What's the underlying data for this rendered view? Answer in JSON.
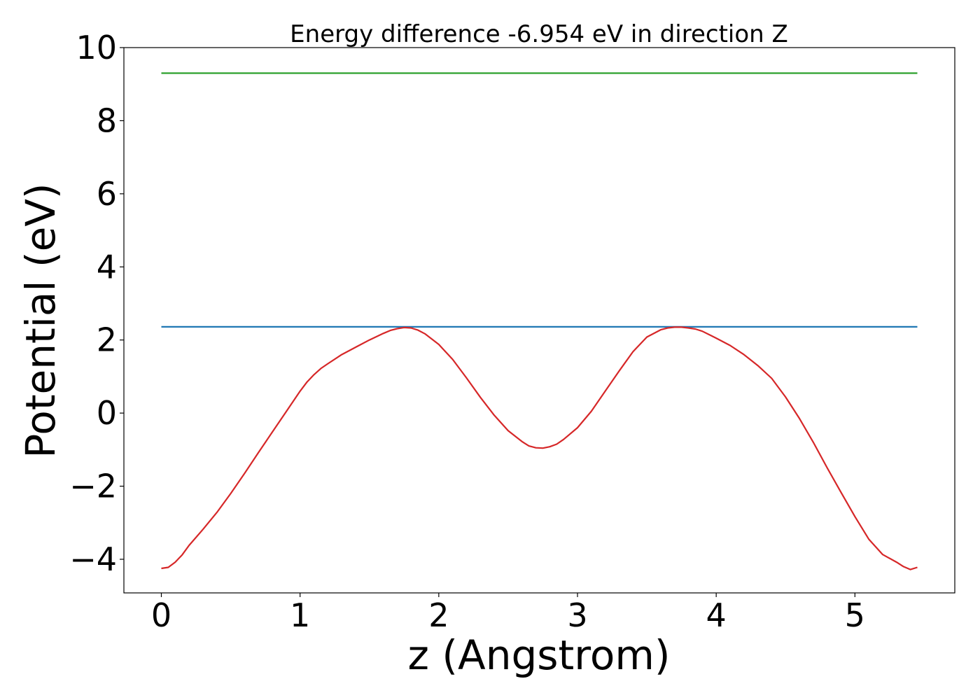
{
  "chart_data": {
    "type": "line",
    "title": "Energy difference -6.954 eV in direction Z",
    "xlabel": "z (Angstrom)",
    "ylabel": "Potential (eV)",
    "xlim": [
      -0.27,
      5.72
    ],
    "ylim": [
      -4.92,
      10.0
    ],
    "x_ticks": [
      0,
      1,
      2,
      3,
      4,
      5
    ],
    "x_tick_labels": [
      "0",
      "1",
      "2",
      "3",
      "4",
      "5"
    ],
    "y_ticks": [
      -4,
      -2,
      0,
      2,
      4,
      6,
      8,
      10
    ],
    "y_tick_labels": [
      "−4",
      "−2",
      "0",
      "2",
      "4",
      "6",
      "8",
      "10"
    ],
    "grid": false,
    "series": [
      {
        "color": "#2ca02c",
        "x": [
          0,
          5.45
        ],
        "y": [
          9.3,
          9.3
        ]
      },
      {
        "color": "#1f77b4",
        "x": [
          0,
          5.45
        ],
        "y": [
          2.36,
          2.36
        ]
      },
      {
        "color": "#d62728",
        "x": [
          0,
          0.05,
          0.1,
          0.15,
          0.2,
          0.3,
          0.4,
          0.5,
          0.6,
          0.7,
          0.8,
          0.9,
          1.0,
          1.05,
          1.1,
          1.15,
          1.2,
          1.3,
          1.4,
          1.5,
          1.6,
          1.65,
          1.7,
          1.75,
          1.8,
          1.85,
          1.9,
          2.0,
          2.1,
          2.2,
          2.3,
          2.4,
          2.5,
          2.6,
          2.65,
          2.7,
          2.75,
          2.8,
          2.85,
          2.9,
          3.0,
          3.1,
          3.2,
          3.3,
          3.4,
          3.5,
          3.6,
          3.65,
          3.7,
          3.75,
          3.8,
          3.85,
          3.9,
          4.0,
          4.1,
          4.2,
          4.3,
          4.4,
          4.5,
          4.6,
          4.7,
          4.8,
          4.9,
          5.0,
          5.1,
          5.2,
          5.3,
          5.35,
          5.4,
          5.45
        ],
        "y": [
          -4.25,
          -4.22,
          -4.08,
          -3.88,
          -3.62,
          -3.18,
          -2.72,
          -2.2,
          -1.65,
          -1.08,
          -0.52,
          0.04,
          0.6,
          0.85,
          1.05,
          1.22,
          1.35,
          1.6,
          1.8,
          2.0,
          2.18,
          2.26,
          2.31,
          2.34,
          2.33,
          2.27,
          2.17,
          1.88,
          1.47,
          0.96,
          0.43,
          -0.06,
          -0.48,
          -0.78,
          -0.9,
          -0.95,
          -0.96,
          -0.92,
          -0.85,
          -0.72,
          -0.4,
          0.05,
          0.6,
          1.15,
          1.68,
          2.08,
          2.28,
          2.33,
          2.35,
          2.35,
          2.33,
          2.3,
          2.24,
          2.05,
          1.85,
          1.6,
          1.3,
          0.95,
          0.44,
          -0.15,
          -0.8,
          -1.5,
          -2.17,
          -2.83,
          -3.45,
          -3.87,
          -4.08,
          -4.2,
          -4.28,
          -4.22
        ]
      }
    ]
  }
}
